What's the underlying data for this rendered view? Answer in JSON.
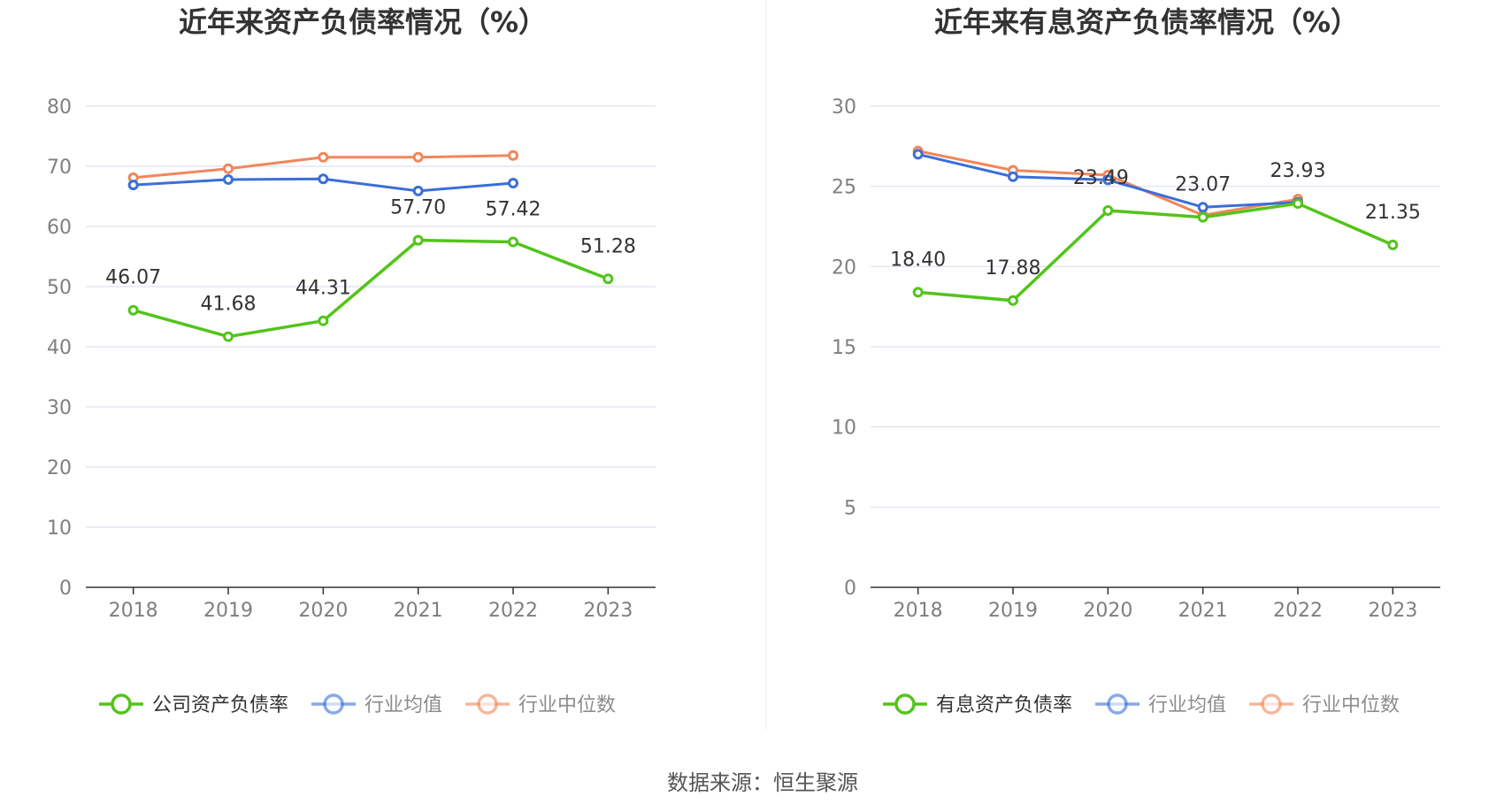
{
  "source": "数据来源：恒生聚源",
  "colors": {
    "company": "#52c41a",
    "avg": "#3a6fd8",
    "median": "#f2865a",
    "grid": "#dde1ef",
    "axis": "#333333",
    "tick": "#7f7f7f"
  },
  "chart_data": [
    {
      "type": "line",
      "title": "近年来资产负债率情况（%）",
      "categories": [
        "2018",
        "2019",
        "2020",
        "2021",
        "2022",
        "2023"
      ],
      "ylim": [
        0,
        80
      ],
      "yticks": [
        0,
        10,
        20,
        30,
        40,
        50,
        60,
        70,
        80
      ],
      "grid": true,
      "legend_position": "bottom",
      "series": [
        {
          "name": "公司资产负债率",
          "color": "#52c41a",
          "values": [
            46.07,
            41.68,
            44.31,
            57.7,
            57.42,
            51.28
          ],
          "labels": [
            "46.07",
            "41.68",
            "44.31",
            "57.70",
            "57.42",
            "51.28"
          ]
        },
        {
          "name": "行业均值",
          "color": "#3a6fd8",
          "values": [
            66.9,
            67.8,
            67.9,
            65.9,
            67.2,
            null
          ]
        },
        {
          "name": "行业中位数",
          "color": "#f2865a",
          "values": [
            68.1,
            69.6,
            71.5,
            71.5,
            71.8,
            null
          ]
        }
      ]
    },
    {
      "type": "line",
      "title": "近年来有息资产负债率情况（%）",
      "categories": [
        "2018",
        "2019",
        "2020",
        "2021",
        "2022",
        "2023"
      ],
      "ylim": [
        0,
        30
      ],
      "yticks": [
        0,
        5,
        10,
        15,
        20,
        25,
        30
      ],
      "grid": true,
      "legend_position": "bottom",
      "series": [
        {
          "name": "有息资产负债率",
          "color": "#52c41a",
          "values": [
            18.4,
            17.88,
            23.49,
            23.07,
            23.93,
            21.35
          ],
          "labels": [
            "18.40",
            "17.88",
            "23.49",
            "23.07",
            "23.93",
            "21.35"
          ]
        },
        {
          "name": "行业均值",
          "color": "#3a6fd8",
          "values": [
            27.0,
            25.6,
            25.4,
            23.7,
            24.0,
            null
          ]
        },
        {
          "name": "行业中位数",
          "color": "#f2865a",
          "values": [
            27.2,
            26.0,
            25.7,
            23.2,
            24.2,
            null
          ]
        }
      ]
    }
  ]
}
